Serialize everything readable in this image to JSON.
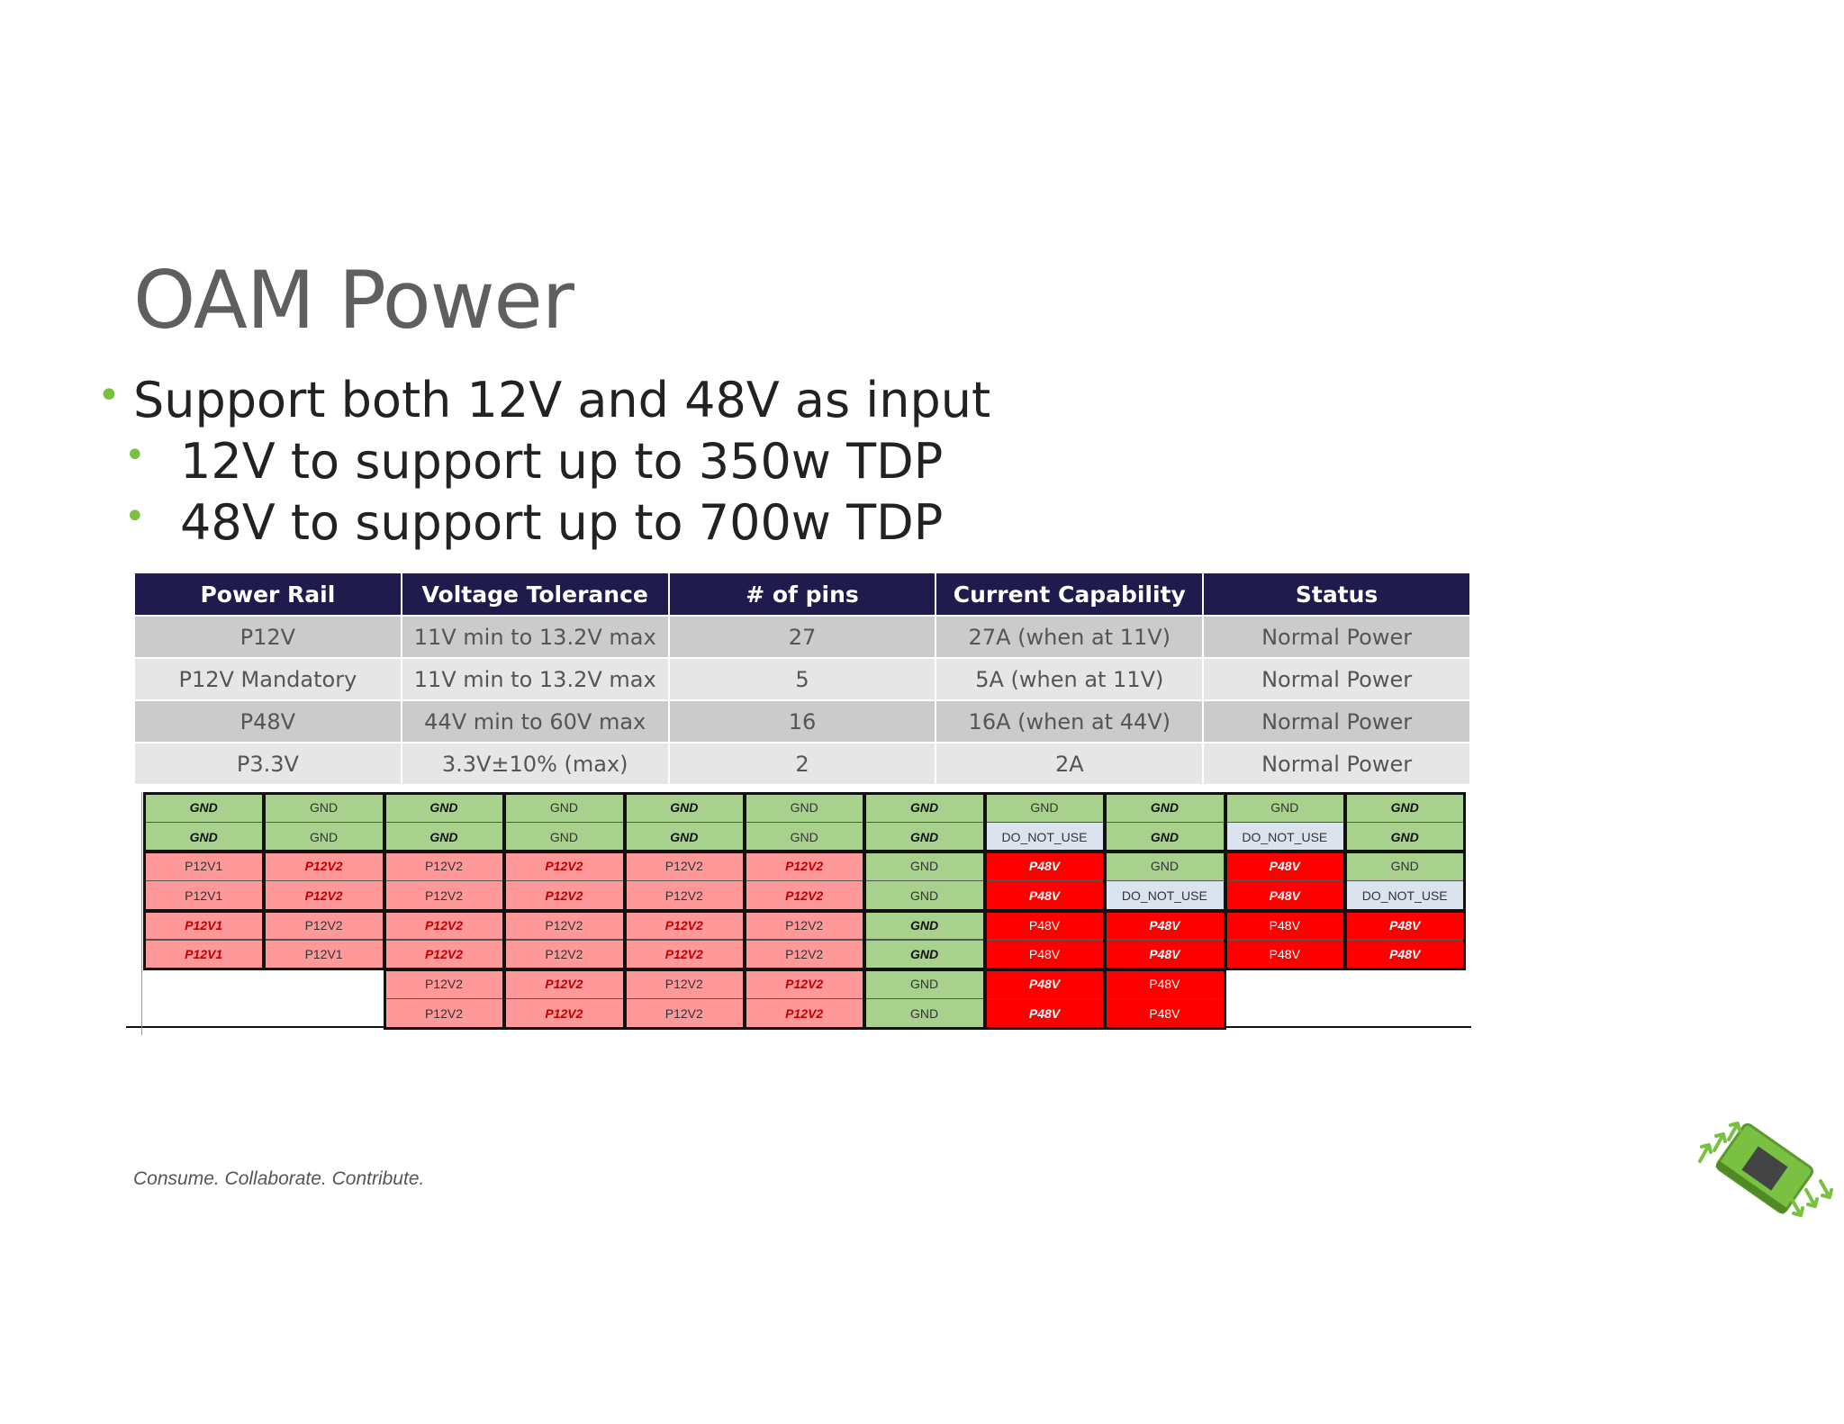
{
  "title": "OAM Power",
  "bullets": [
    "Support both 12V and 48V as input",
    "12V to support up to 350w TDP",
    "48V to support up to 700w TDP"
  ],
  "table": {
    "headers": [
      "Power Rail",
      "Voltage Tolerance",
      "# of pins",
      "Current Capability",
      "Status"
    ],
    "rows": [
      [
        "P12V",
        "11V min to 13.2V max",
        "27",
        "27A (when at 11V)",
        "Normal Power"
      ],
      [
        "P12V Mandatory",
        "11V min to 13.2V max",
        "5",
        "5A (when at 11V)",
        "Normal Power"
      ],
      [
        "P48V",
        "44V min to 60V max",
        "16",
        "16A (when at 44V)",
        "Normal Power"
      ],
      [
        "P3.3V",
        "3.3V±10% (max)",
        "2",
        "2A",
        "Normal Power"
      ]
    ]
  },
  "pinmap": {
    "colors": {
      "green": "#a9d18e",
      "pink": "#ff9999",
      "red": "#ff0000",
      "gray": "#dae3ee"
    },
    "columns": [
      [
        [
          "GND",
          "green",
          1
        ],
        [
          "GND",
          "green",
          1
        ],
        [
          "P12V1",
          "pink",
          0
        ],
        [
          "P12V1",
          "pink",
          0
        ],
        [
          "P12V1",
          "pink",
          1
        ],
        [
          "P12V1",
          "pink",
          1
        ]
      ],
      [
        [
          "GND",
          "green",
          0
        ],
        [
          "GND",
          "green",
          0
        ],
        [
          "P12V2",
          "pink",
          1
        ],
        [
          "P12V2",
          "pink",
          1
        ],
        [
          "P12V2",
          "pink",
          0
        ],
        [
          "P12V1",
          "pink",
          0
        ]
      ],
      [
        [
          "GND",
          "green",
          1
        ],
        [
          "GND",
          "green",
          1
        ],
        [
          "P12V2",
          "pink",
          0
        ],
        [
          "P12V2",
          "pink",
          0
        ],
        [
          "P12V2",
          "pink",
          1
        ],
        [
          "P12V2",
          "pink",
          1
        ],
        [
          "P12V2",
          "pink",
          0
        ],
        [
          "P12V2",
          "pink",
          0
        ]
      ],
      [
        [
          "GND",
          "green",
          0
        ],
        [
          "GND",
          "green",
          0
        ],
        [
          "P12V2",
          "pink",
          1
        ],
        [
          "P12V2",
          "pink",
          1
        ],
        [
          "P12V2",
          "pink",
          0
        ],
        [
          "P12V2",
          "pink",
          0
        ],
        [
          "P12V2",
          "pink",
          1
        ],
        [
          "P12V2",
          "pink",
          1
        ]
      ],
      [
        [
          "GND",
          "green",
          1
        ],
        [
          "GND",
          "green",
          1
        ],
        [
          "P12V2",
          "pink",
          0
        ],
        [
          "P12V2",
          "pink",
          0
        ],
        [
          "P12V2",
          "pink",
          1
        ],
        [
          "P12V2",
          "pink",
          1
        ],
        [
          "P12V2",
          "pink",
          0
        ],
        [
          "P12V2",
          "pink",
          0
        ]
      ],
      [
        [
          "GND",
          "green",
          0
        ],
        [
          "GND",
          "green",
          0
        ],
        [
          "P12V2",
          "pink",
          1
        ],
        [
          "P12V2",
          "pink",
          1
        ],
        [
          "P12V2",
          "pink",
          0
        ],
        [
          "P12V2",
          "pink",
          0
        ],
        [
          "P12V2",
          "pink",
          1
        ],
        [
          "P12V2",
          "pink",
          1
        ]
      ],
      [
        [
          "GND",
          "green",
          1
        ],
        [
          "GND",
          "green",
          1
        ],
        [
          "GND",
          "green",
          0
        ],
        [
          "GND",
          "green",
          0
        ],
        [
          "GND",
          "green",
          1
        ],
        [
          "GND",
          "green",
          1
        ],
        [
          "GND",
          "green",
          0
        ],
        [
          "GND",
          "green",
          0
        ]
      ],
      [
        [
          "GND",
          "green",
          0
        ],
        [
          "DO_NOT_USE",
          "gray",
          0
        ],
        [
          "P48V",
          "red",
          1
        ],
        [
          "P48V",
          "red",
          1
        ],
        [
          "P48V",
          "red",
          0
        ],
        [
          "P48V",
          "red",
          0
        ],
        [
          "P48V",
          "red",
          1
        ],
        [
          "P48V",
          "red",
          1
        ]
      ],
      [
        [
          "GND",
          "green",
          1
        ],
        [
          "GND",
          "green",
          1
        ],
        [
          "GND",
          "green",
          0
        ],
        [
          "DO_NOT_USE",
          "gray",
          0
        ],
        [
          "P48V",
          "red",
          1
        ],
        [
          "P48V",
          "red",
          1
        ],
        [
          "P48V",
          "red",
          0
        ],
        [
          "P48V",
          "red",
          0
        ]
      ],
      [
        [
          "GND",
          "green",
          0
        ],
        [
          "DO_NOT_USE",
          "gray",
          0
        ],
        [
          "P48V",
          "red",
          1
        ],
        [
          "P48V",
          "red",
          1
        ],
        [
          "P48V",
          "red",
          0
        ],
        [
          "P48V",
          "red",
          0
        ]
      ],
      [
        [
          "GND",
          "green",
          1
        ],
        [
          "GND",
          "green",
          1
        ],
        [
          "GND",
          "green",
          0
        ],
        [
          "DO_NOT_USE",
          "gray",
          0
        ],
        [
          "P48V",
          "red",
          1
        ],
        [
          "P48V",
          "red",
          1
        ]
      ]
    ]
  },
  "footer": "Consume. Collaborate. Contribute."
}
